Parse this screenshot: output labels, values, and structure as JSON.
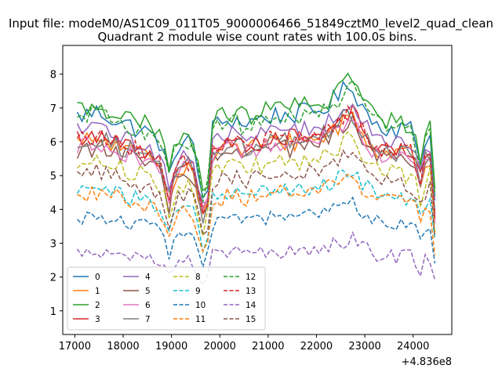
{
  "chart_data": {
    "type": "line",
    "suptitle": "Input file: modeM0/AS1C09_011T05_9000006466_51849cztM0_level2_quad_clean",
    "title": "Quadrant 2 module wise count rates with 100.0s bins.",
    "xlabel": "",
    "ylabel": "",
    "x_offset_label": "+4.836e8",
    "xlim": [
      16750,
      24800
    ],
    "ylim": [
      0.3,
      8.85
    ],
    "x_ticks": [
      17000,
      18000,
      19000,
      20000,
      21000,
      22000,
      23000,
      24000
    ],
    "x_tick_labels": [
      "17000",
      "18000",
      "19000",
      "20000",
      "21000",
      "22000",
      "23000",
      "24000"
    ],
    "y_ticks": [
      1,
      2,
      3,
      4,
      5,
      6,
      7,
      8
    ],
    "y_tick_labels": [
      "1",
      "2",
      "3",
      "4",
      "5",
      "6",
      "7",
      "8"
    ],
    "legend_position": "lower-left",
    "x_range": [
      17050,
      24500
    ],
    "bin_seconds": 100,
    "series": [
      {
        "name": "0",
        "color": "#1f77b4",
        "dash": "solid",
        "base": 6.75,
        "noise": 0.3
      },
      {
        "name": "1",
        "color": "#ff7f0e",
        "dash": "solid",
        "base": 5.95,
        "noise": 0.28
      },
      {
        "name": "2",
        "color": "#2ca02c",
        "dash": "solid",
        "base": 6.95,
        "noise": 0.3
      },
      {
        "name": "3",
        "color": "#d62728",
        "dash": "solid",
        "base": 6.1,
        "noise": 0.25
      },
      {
        "name": "4",
        "color": "#9467bd",
        "dash": "solid",
        "base": 6.3,
        "noise": 0.25
      },
      {
        "name": "5",
        "color": "#8c564b",
        "dash": "solid",
        "base": 5.75,
        "noise": 0.28
      },
      {
        "name": "6",
        "color": "#e377c2",
        "dash": "solid",
        "base": 5.85,
        "noise": 0.25
      },
      {
        "name": "7",
        "color": "#7f7f7f",
        "dash": "solid",
        "base": 6.0,
        "noise": 0.28
      },
      {
        "name": "8",
        "color": "#bcbd22",
        "dash": "dashed",
        "base": 5.35,
        "noise": 0.28
      },
      {
        "name": "9",
        "color": "#17becf",
        "dash": "dashed",
        "base": 4.55,
        "noise": 0.25
      },
      {
        "name": "10",
        "color": "#1f77b4",
        "dash": "dashed",
        "base": 3.75,
        "noise": 0.22
      },
      {
        "name": "11",
        "color": "#ff7f0e",
        "dash": "dashed",
        "base": 4.45,
        "noise": 0.25
      },
      {
        "name": "12",
        "color": "#2ca02c",
        "dash": "dashed",
        "base": 6.7,
        "noise": 0.3
      },
      {
        "name": "13",
        "color": "#d62728",
        "dash": "dashed",
        "base": 6.05,
        "noise": 0.28
      },
      {
        "name": "14",
        "color": "#9467bd",
        "dash": "dashed",
        "base": 2.75,
        "noise": 0.22
      },
      {
        "name": "15",
        "color": "#8c564b",
        "dash": "dashed",
        "base": 5.0,
        "noise": 0.25
      }
    ],
    "profile": {
      "x": [
        17050,
        17500,
        18000,
        18500,
        18800,
        18950,
        19100,
        19400,
        19600,
        19700,
        19850,
        20200,
        20500,
        21000,
        21500,
        22000,
        22300,
        22600,
        22750,
        22900,
        23200,
        23600,
        24000,
        24150,
        24300,
        24420,
        24500
      ],
      "factor": [
        1.0,
        1.02,
        0.97,
        0.93,
        0.88,
        0.72,
        0.88,
        0.9,
        0.7,
        0.58,
        0.95,
        0.99,
        0.97,
        1.0,
        1.01,
        1.02,
        1.06,
        1.12,
        1.14,
        1.06,
        0.97,
        0.95,
        0.94,
        0.8,
        0.96,
        0.9,
        0.2
      ]
    }
  }
}
